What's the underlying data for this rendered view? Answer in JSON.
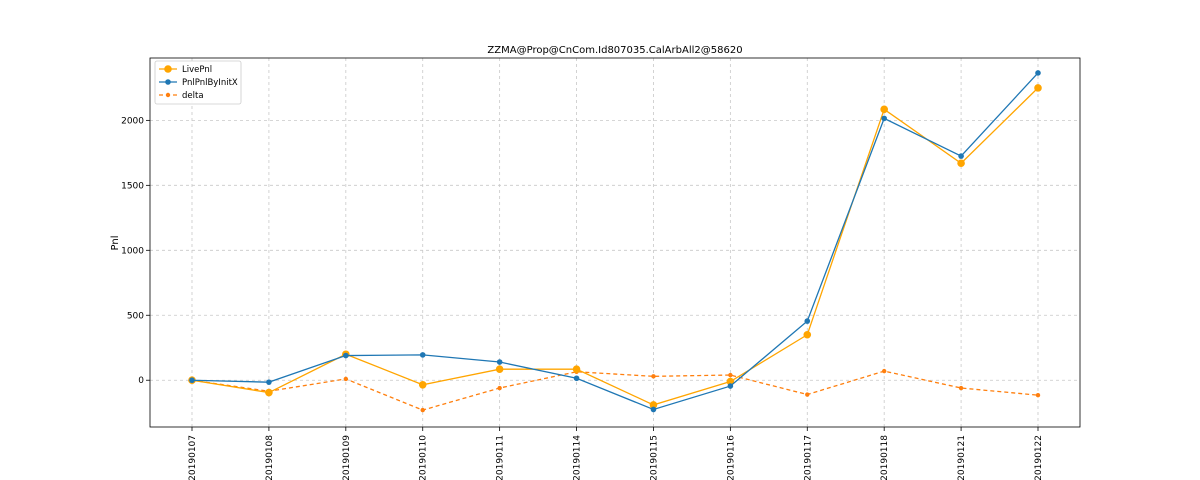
{
  "chart_data": {
    "type": "line",
    "title": "ZZMA@Prop@CnCom.Id807035.CalArbAll2@58620",
    "xlabel": "",
    "ylabel": "Pnl",
    "categories": [
      "20190107",
      "20190108",
      "20190109",
      "20190110",
      "20190111",
      "20190114",
      "20190115",
      "20190116",
      "20190117",
      "20190118",
      "20190121",
      "20190122"
    ],
    "ylim": [
      -360,
      2480
    ],
    "yticks": [
      0,
      500,
      1000,
      1500,
      2000
    ],
    "grid": true,
    "legend_position": "top-left",
    "series": [
      {
        "name": "LivePnl",
        "color": "#ffa500",
        "style": "solid",
        "marker": "large-circle",
        "values": [
          0,
          -95,
          200,
          -35,
          85,
          85,
          -190,
          -10,
          350,
          2085,
          1670,
          2250
        ]
      },
      {
        "name": "PnlPnlByInitX",
        "color": "#1f77b4",
        "style": "solid",
        "marker": "circle",
        "values": [
          0,
          -15,
          190,
          195,
          140,
          15,
          -225,
          -45,
          455,
          2015,
          1725,
          2365
        ]
      },
      {
        "name": "delta",
        "color": "#ff7f0e",
        "style": "dashed",
        "marker": "small-circle",
        "values": [
          0,
          -85,
          10,
          -230,
          -60,
          65,
          30,
          40,
          -110,
          70,
          -60,
          -115
        ]
      }
    ]
  }
}
